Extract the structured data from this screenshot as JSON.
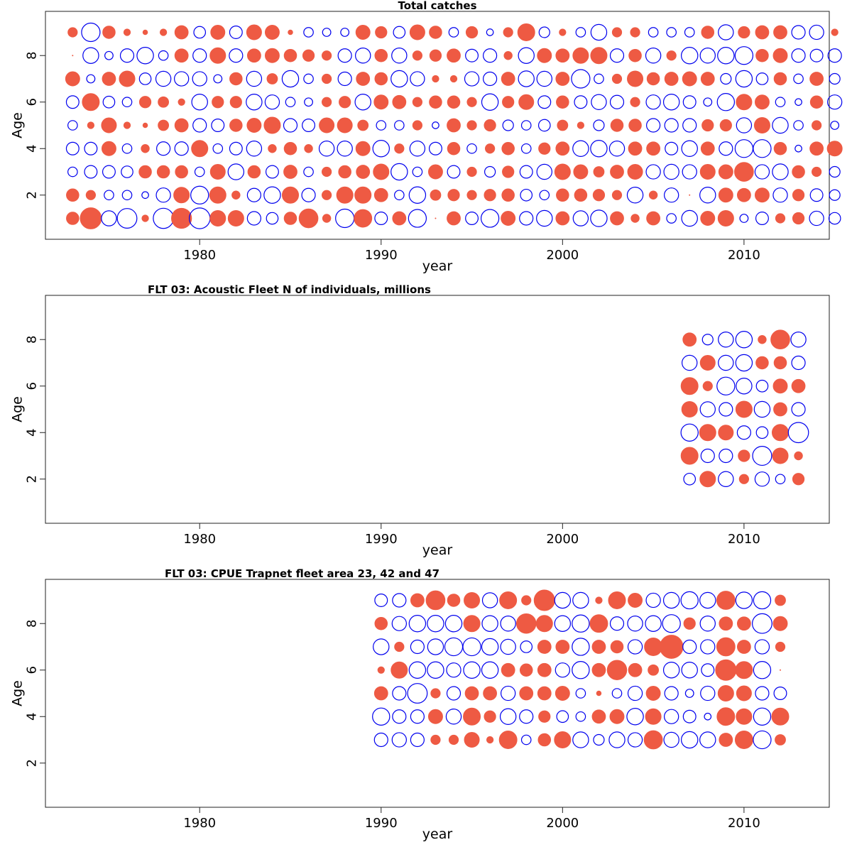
{
  "colors": {
    "positive": "#ee5a43",
    "negative": "#0000ee"
  },
  "chart_data": [
    {
      "type": "scatter",
      "title": "Total catches",
      "xlabel": "year",
      "ylabel": "Age",
      "xlim": [
        1971.5,
        2014.7
      ],
      "ylim": [
        0.1,
        9.9
      ],
      "xticks": [
        1980,
        1990,
        2000,
        2010
      ],
      "yticks": [
        2,
        4,
        6,
        8
      ],
      "years_start": 1973,
      "ages": [
        1,
        2,
        3,
        4,
        5,
        6,
        7,
        8,
        9
      ],
      "residuals": [
        [
          0.35,
          0.35,
          -0.2,
          -0.35,
          -0.2,
          -0.35,
          0.45,
          0.0,
          0.2
        ],
        [
          1.0,
          0.2,
          -0.35,
          -0.35,
          0.1,
          0.65,
          -0.15,
          -0.55,
          -0.75
        ],
        [
          -0.5,
          -0.2,
          -0.35,
          0.45,
          0.5,
          -0.3,
          0.4,
          -0.15,
          0.35
        ],
        [
          -0.85,
          -0.2,
          -0.3,
          -0.2,
          0.1,
          -0.2,
          0.55,
          -0.4,
          0.1
        ],
        [
          0.1,
          -0.1,
          0.35,
          0.15,
          0.05,
          0.3,
          -0.3,
          -0.6,
          0.05
        ],
        [
          -0.9,
          -0.45,
          0.35,
          -0.4,
          0.25,
          0.25,
          -0.5,
          -0.2,
          0.1
        ],
        [
          0.9,
          0.55,
          0.35,
          -0.4,
          0.4,
          0.1,
          -0.45,
          0.4,
          0.4
        ],
        [
          -0.95,
          -0.7,
          -0.2,
          0.6,
          -0.4,
          -0.55,
          -0.45,
          -0.4,
          -0.3
        ],
        [
          0.55,
          0.6,
          0.5,
          -0.2,
          -0.35,
          0.3,
          -0.15,
          0.55,
          0.45
        ],
        [
          0.55,
          0.15,
          -0.55,
          -0.35,
          0.35,
          0.3,
          0.35,
          -0.4,
          -0.35
        ],
        [
          -0.4,
          -0.4,
          0.35,
          -0.5,
          0.45,
          -0.55,
          -0.5,
          0.4,
          0.5
        ],
        [
          -0.3,
          -0.6,
          -0.35,
          0.15,
          0.6,
          -0.45,
          0.25,
          0.45,
          0.45
        ],
        [
          0.35,
          0.6,
          0.4,
          0.35,
          -0.4,
          -0.2,
          -0.6,
          0.35,
          0.05
        ],
        [
          0.8,
          -0.4,
          -0.2,
          0.15,
          -0.35,
          -0.15,
          -0.2,
          0.3,
          -0.2
        ],
        [
          0.15,
          0.2,
          0.2,
          -0.5,
          0.5,
          0.2,
          0.2,
          0.2,
          -0.15
        ],
        [
          -0.75,
          0.6,
          0.35,
          -0.5,
          0.5,
          0.3,
          -0.4,
          -0.4,
          -0.15
        ],
        [
          0.7,
          0.6,
          0.4,
          0.45,
          0.25,
          -0.55,
          0.4,
          -0.5,
          0.45
        ],
        [
          -0.35,
          0.4,
          0.55,
          -0.6,
          -0.2,
          0.45,
          0.35,
          0.35,
          0.3
        ],
        [
          0.4,
          -0.2,
          -0.6,
          0.2,
          -0.2,
          0.4,
          -0.6,
          -0.5,
          -0.3
        ],
        [
          -0.7,
          -0.6,
          -0.2,
          -0.5,
          0.2,
          0.2,
          -0.45,
          0.2,
          0.5
        ],
        [
          0.0,
          0.25,
          0.45,
          -0.35,
          -0.1,
          0.35,
          0.1,
          0.3,
          0.35
        ],
        [
          0.4,
          0.3,
          -0.35,
          0.35,
          0.4,
          0.35,
          0.1,
          0.4,
          -0.2
        ],
        [
          -0.35,
          0.2,
          0.2,
          -0.2,
          0.2,
          0.2,
          -0.45,
          -0.35,
          0.3
        ],
        [
          -0.7,
          0.3,
          -0.25,
          0.2,
          0.3,
          -0.6,
          -0.4,
          -0.4,
          -0.1
        ],
        [
          0.45,
          0.35,
          0.3,
          0.35,
          -0.25,
          0.3,
          0.4,
          0.15,
          0.2
        ],
        [
          -0.4,
          -0.3,
          -0.35,
          -0.2,
          -0.2,
          0.5,
          -0.55,
          -0.55,
          0.65
        ],
        [
          -0.55,
          -0.2,
          -0.5,
          0.3,
          -0.3,
          -0.35,
          -0.5,
          0.45,
          -0.25
        ],
        [
          0.4,
          0.35,
          0.55,
          0.4,
          0.25,
          0.35,
          0.4,
          0.4,
          0.1
        ],
        [
          -0.5,
          0.35,
          0.45,
          -0.55,
          0.1,
          -0.35,
          -0.75,
          0.55,
          -0.2
        ],
        [
          -0.6,
          0.3,
          0.25,
          -0.6,
          -0.25,
          -0.5,
          -0.2,
          0.6,
          -0.55
        ],
        [
          0.4,
          0.2,
          0.4,
          -0.5,
          0.35,
          -0.4,
          0.2,
          -0.4,
          0.2
        ],
        [
          0.15,
          -0.55,
          0.5,
          0.4,
          0.35,
          0.2,
          0.55,
          0.35,
          0.2
        ],
        [
          0.4,
          0.15,
          -0.45,
          0.4,
          -0.4,
          -0.45,
          0.35,
          -0.5,
          -0.2
        ],
        [
          -0.2,
          -0.45,
          -0.5,
          -0.35,
          -0.4,
          -0.55,
          0.4,
          0.2,
          -0.2
        ],
        [
          -0.55,
          0.0,
          -0.45,
          -0.55,
          -0.4,
          -0.35,
          0.45,
          -0.6,
          -0.2
        ],
        [
          0.45,
          -0.55,
          0.5,
          0.4,
          0.3,
          -0.15,
          0.4,
          -0.5,
          0.35
        ],
        [
          0.55,
          0.45,
          0.45,
          -0.4,
          0.3,
          -0.65,
          -0.25,
          -0.6,
          -0.5
        ],
        [
          -0.15,
          0.4,
          0.8,
          -0.7,
          -0.5,
          0.55,
          -0.6,
          -0.7,
          0.3
        ],
        [
          -0.35,
          0.45,
          -0.45,
          -0.7,
          0.55,
          0.45,
          -0.3,
          0.35,
          0.4
        ],
        [
          0.2,
          -0.45,
          -0.55,
          0.35,
          -0.55,
          -0.2,
          0.35,
          0.45,
          0.4
        ],
        [
          0.3,
          0.3,
          0.35,
          -0.1,
          -0.2,
          -0.1,
          -0.2,
          -0.4,
          -0.4
        ],
        [
          -0.45,
          -0.35,
          0.2,
          0.4,
          0.2,
          0.35,
          0.4,
          -0.35,
          -0.45
        ],
        [
          -0.3,
          -0.25,
          -0.25,
          0.5,
          -0.15,
          -0.45,
          -0.25,
          -0.4,
          0.1
        ]
      ]
    },
    {
      "type": "scatter",
      "title": "FLT 03: Acoustic Fleet   N of individuals, millions",
      "xlabel": "year",
      "ylabel": "Age",
      "xlim": [
        1971.5,
        2014.7
      ],
      "ylim": [
        0.1,
        9.9
      ],
      "xticks": [
        1980,
        1990,
        2000,
        2010
      ],
      "yticks": [
        2,
        4,
        6,
        8
      ],
      "years_start": 2007,
      "ages": [
        2,
        3,
        4,
        5,
        6,
        7,
        8
      ],
      "residuals": [
        [
          -0.3,
          0.65,
          -0.65,
          0.55,
          0.65,
          -0.5,
          0.4
        ],
        [
          0.55,
          -0.4,
          0.6,
          -0.5,
          0.2,
          0.5,
          -0.25
        ],
        [
          -0.5,
          -0.4,
          0.5,
          -0.4,
          -0.7,
          -0.5,
          -0.5
        ],
        [
          0.2,
          0.3,
          -0.4,
          0.6,
          -0.55,
          -0.6,
          -0.6
        ],
        [
          -0.45,
          -0.8,
          -0.3,
          -0.55,
          -0.3,
          0.35,
          0.15
        ],
        [
          -0.2,
          0.55,
          0.6,
          0.4,
          0.45,
          0.35,
          0.8
        ],
        [
          0.3,
          0.15,
          -0.9,
          -0.4,
          0.4,
          -0.4,
          -0.5
        ]
      ]
    },
    {
      "type": "scatter",
      "title": "FLT 03: CPUE Trapnet fleet area 23, 42 and 47",
      "xlabel": "year",
      "ylabel": "Age",
      "xlim": [
        1971.5,
        2014.7
      ],
      "ylim": [
        0.1,
        9.9
      ],
      "xticks": [
        1980,
        1990,
        2000,
        2010
      ],
      "yticks": [
        2,
        4,
        6,
        8
      ],
      "years_start": 1990,
      "ages": [
        3,
        4,
        5,
        6,
        7,
        8,
        9
      ],
      "residuals": [
        [
          -0.4,
          -0.65,
          0.4,
          0.1,
          -0.55,
          0.35,
          -0.35
        ],
        [
          -0.45,
          -0.4,
          -0.4,
          0.6,
          0.2,
          -0.45,
          -0.4
        ],
        [
          -0.4,
          -0.4,
          -0.85,
          -0.6,
          -0.4,
          -0.6,
          0.4
        ],
        [
          0.2,
          0.45,
          0.2,
          -0.6,
          -0.55,
          -0.6,
          0.8
        ],
        [
          0.2,
          -0.5,
          -0.4,
          -0.45,
          -0.7,
          -0.6,
          0.35
        ],
        [
          0.5,
          0.65,
          0.4,
          -0.6,
          -0.7,
          0.6,
          0.55
        ],
        [
          0.1,
          0.3,
          0.4,
          -0.6,
          -0.6,
          -0.55,
          -0.5
        ],
        [
          0.7,
          -0.55,
          -0.45,
          0.4,
          -0.5,
          -0.5,
          0.65
        ],
        [
          -0.2,
          -0.4,
          0.4,
          0.35,
          -0.3,
          0.85,
          0.2
        ],
        [
          0.35,
          0.3,
          0.4,
          0.4,
          0.4,
          0.6,
          0.95
        ],
        [
          0.6,
          -0.3,
          0.45,
          -0.45,
          0.4,
          -0.55,
          -0.55
        ],
        [
          -0.55,
          -0.2,
          -0.2,
          -0.65,
          -0.65,
          -0.65,
          -0.55
        ],
        [
          -0.25,
          0.4,
          0.05,
          0.4,
          0.4,
          0.7,
          0.1
        ],
        [
          -0.55,
          0.45,
          -0.2,
          0.85,
          0.35,
          -0.4,
          0.65
        ],
        [
          -0.45,
          -0.6,
          -0.45,
          0.4,
          -0.45,
          -0.5,
          0.45
        ],
        [
          0.75,
          0.55,
          0.45,
          0.25,
          0.7,
          -0.55,
          -0.45
        ],
        [
          -0.5,
          -0.45,
          -0.4,
          -0.55,
          1.2,
          -0.7,
          -0.55
        ],
        [
          -0.6,
          -0.35,
          -0.15,
          -0.55,
          -0.4,
          0.3,
          -0.65
        ],
        [
          -0.55,
          -0.1,
          -0.45,
          -0.35,
          -0.45,
          -0.5,
          -0.55
        ],
        [
          0.4,
          0.7,
          0.55,
          0.95,
          0.75,
          0.4,
          0.75
        ],
        [
          0.7,
          0.55,
          0.5,
          0.65,
          0.4,
          0.4,
          -0.6
        ],
        [
          -0.7,
          -0.65,
          -0.4,
          -0.65,
          -0.45,
          -0.85,
          -0.65
        ],
        [
          0.25,
          0.65,
          -0.35,
          0.0,
          0.2,
          0.45,
          0.25
        ]
      ]
    }
  ]
}
